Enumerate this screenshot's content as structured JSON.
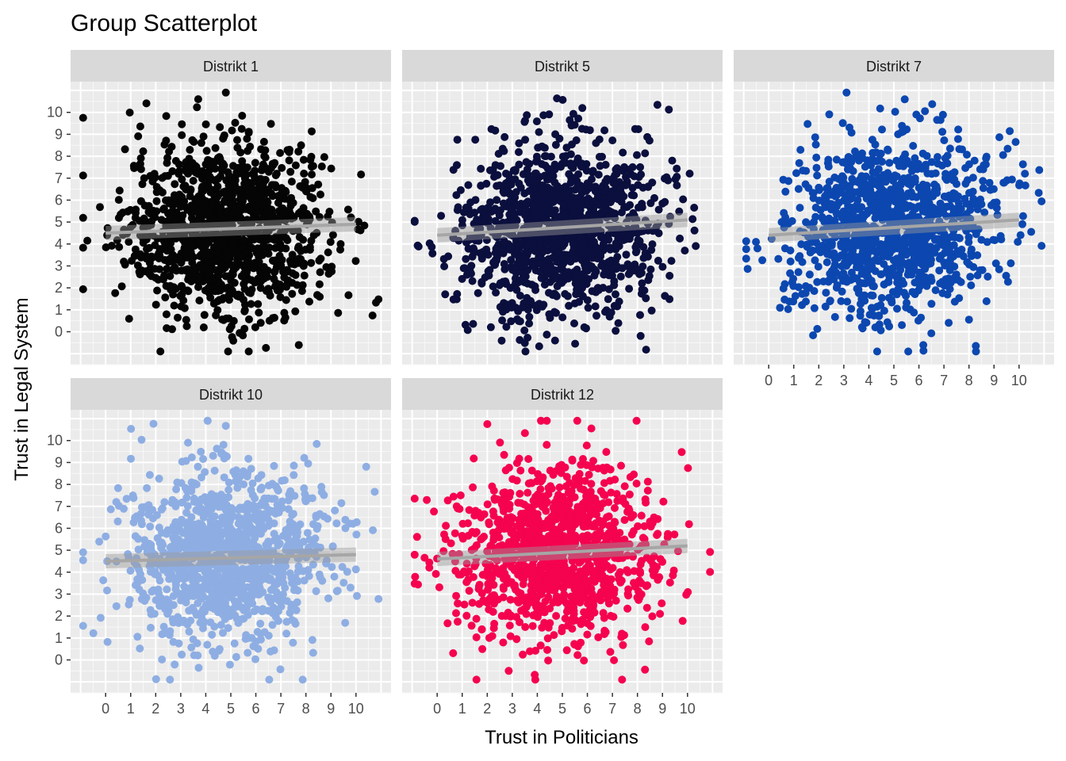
{
  "chart_data": {
    "type": "scatter",
    "title": "Group Scatterplot",
    "xlabel": "Trust in Politicians",
    "ylabel": "Trust in Legal System",
    "xlim": [
      -1.4,
      11.4
    ],
    "ylim": [
      -1.5,
      11.4
    ],
    "x_ticks": [
      0,
      1,
      2,
      3,
      4,
      5,
      6,
      7,
      8,
      9,
      10
    ],
    "y_ticks": [
      0,
      1,
      2,
      3,
      4,
      5,
      6,
      7,
      8,
      9,
      10
    ],
    "grid": true,
    "legend": "none",
    "panel_background": "#ebebeb",
    "strip_background": "#d9d9d9",
    "fit_line_color": "#a6a6a6",
    "n_points_per_panel": 1200,
    "panels": [
      {
        "label": "Distrikt 1",
        "color": "#050505",
        "fit": {
          "x": [
            0,
            10
          ],
          "y": [
            4.5,
            4.9
          ]
        },
        "x_mean": 4.8,
        "x_sd": 2.0,
        "y_mean": 4.7,
        "y_sd": 2.0
      },
      {
        "label": "Distrikt 5",
        "color": "#0b0f3d",
        "fit": {
          "x": [
            0,
            10
          ],
          "y": [
            4.4,
            5.1
          ]
        },
        "x_mean": 4.8,
        "x_sd": 2.0,
        "y_mean": 4.7,
        "y_sd": 2.0
      },
      {
        "label": "Distrikt 7",
        "color": "#0c47b0",
        "fit": {
          "x": [
            0,
            10
          ],
          "y": [
            4.4,
            5.1
          ]
        },
        "x_mean": 4.8,
        "x_sd": 2.0,
        "y_mean": 4.7,
        "y_sd": 2.0
      },
      {
        "label": "Distrikt 10",
        "color": "#8eaee3",
        "fit": {
          "x": [
            0,
            10
          ],
          "y": [
            4.5,
            4.8
          ]
        },
        "x_mean": 4.8,
        "x_sd": 2.0,
        "y_mean": 4.6,
        "y_sd": 2.0
      },
      {
        "label": "Distrikt 12",
        "color": "#f5034f",
        "fit": {
          "x": [
            0,
            10
          ],
          "y": [
            4.6,
            5.2
          ]
        },
        "x_mean": 4.8,
        "x_sd": 2.0,
        "y_mean": 4.8,
        "y_sd": 2.0
      }
    ]
  }
}
